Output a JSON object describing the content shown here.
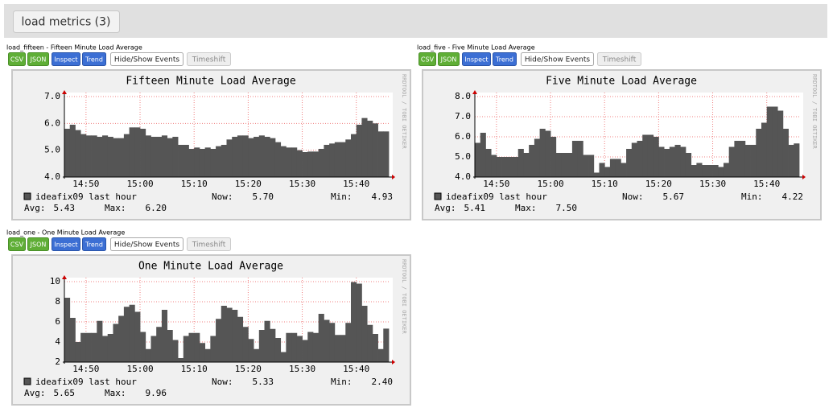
{
  "header": {
    "title": "load metrics (3)"
  },
  "buttons": [
    "CSV",
    "JSON",
    "Inspect",
    "Trend",
    "Hide/Show Events",
    "Timeshift"
  ],
  "chart_data": [
    {
      "type": "area",
      "caption": "load_fifteen - Fifteen Minute Load Average",
      "title": "Fifteen Minute Load Average",
      "watermark": "RRDTOOL / TOBI OETIKER",
      "x": [
        "14:46",
        "14:47",
        "14:48",
        "14:49",
        "14:50",
        "14:51",
        "14:52",
        "14:53",
        "14:54",
        "14:55",
        "14:56",
        "14:57",
        "14:58",
        "14:59",
        "15:00",
        "15:01",
        "15:02",
        "15:03",
        "15:04",
        "15:05",
        "15:06",
        "15:07",
        "15:08",
        "15:09",
        "15:10",
        "15:11",
        "15:12",
        "15:13",
        "15:14",
        "15:15",
        "15:16",
        "15:17",
        "15:18",
        "15:19",
        "15:20",
        "15:21",
        "15:22",
        "15:23",
        "15:24",
        "15:25",
        "15:26",
        "15:27",
        "15:28",
        "15:29",
        "15:30",
        "15:31",
        "15:32",
        "15:33",
        "15:34",
        "15:35",
        "15:36",
        "15:37",
        "15:38",
        "15:39",
        "15:40",
        "15:41",
        "15:42",
        "15:43",
        "15:44",
        "15:45"
      ],
      "xlim": [
        "14:46",
        "15:46"
      ],
      "xticks": [
        "14:50",
        "15:00",
        "15:10",
        "15:20",
        "15:30",
        "15:40"
      ],
      "ylim": [
        4,
        7
      ],
      "yticks": [
        {
          "value": 4,
          "label": "4.0"
        },
        {
          "value": 5,
          "label": "5.0"
        },
        {
          "value": 6,
          "label": "6.0"
        },
        {
          "value": 7,
          "label": "7.0"
        }
      ],
      "grid": true,
      "series": [
        {
          "name": "ideafix09 last hour",
          "color": "#555555",
          "values": [
            5.8,
            5.95,
            5.75,
            5.6,
            5.55,
            5.55,
            5.5,
            5.55,
            5.5,
            5.45,
            5.45,
            5.6,
            5.85,
            5.85,
            5.8,
            5.55,
            5.5,
            5.5,
            5.55,
            5.45,
            5.5,
            5.2,
            5.2,
            5.05,
            5.1,
            5.05,
            5.1,
            5.05,
            5.15,
            5.2,
            5.4,
            5.5,
            5.55,
            5.55,
            5.45,
            5.5,
            5.55,
            5.5,
            5.45,
            5.3,
            5.15,
            5.1,
            5.1,
            5.0,
            4.93,
            4.95,
            4.95,
            5.05,
            5.2,
            5.25,
            5.3,
            5.3,
            5.4,
            5.6,
            5.95,
            6.2,
            6.1,
            6.0,
            5.7,
            5.7
          ]
        }
      ],
      "stats": [
        {
          "label": "Now:",
          "value": "5.70"
        },
        {
          "label": "Min:",
          "value": "4.93"
        },
        {
          "label": "Avg:",
          "value": "5.43"
        },
        {
          "label": "Max:",
          "value": "6.20"
        }
      ]
    },
    {
      "type": "area",
      "caption": "load_five - Five Minute Load Average",
      "title": "Five Minute Load Average",
      "watermark": "RRDTOOL / TOBI OETIKER",
      "x": [
        "14:46",
        "14:47",
        "14:48",
        "14:49",
        "14:50",
        "14:51",
        "14:52",
        "14:53",
        "14:54",
        "14:55",
        "14:56",
        "14:57",
        "14:58",
        "14:59",
        "15:00",
        "15:01",
        "15:02",
        "15:03",
        "15:04",
        "15:05",
        "15:06",
        "15:07",
        "15:08",
        "15:09",
        "15:10",
        "15:11",
        "15:12",
        "15:13",
        "15:14",
        "15:15",
        "15:16",
        "15:17",
        "15:18",
        "15:19",
        "15:20",
        "15:21",
        "15:22",
        "15:23",
        "15:24",
        "15:25",
        "15:26",
        "15:27",
        "15:28",
        "15:29",
        "15:30",
        "15:31",
        "15:32",
        "15:33",
        "15:34",
        "15:35",
        "15:36",
        "15:37",
        "15:38",
        "15:39",
        "15:40",
        "15:41",
        "15:42",
        "15:43",
        "15:44",
        "15:45"
      ],
      "xlim": [
        "14:46",
        "15:46"
      ],
      "xticks": [
        "14:50",
        "15:00",
        "15:10",
        "15:20",
        "15:30",
        "15:40"
      ],
      "ylim": [
        4,
        8
      ],
      "yticks": [
        {
          "value": 4,
          "label": "4.0"
        },
        {
          "value": 5,
          "label": "5.0"
        },
        {
          "value": 6,
          "label": "6.0"
        },
        {
          "value": 7,
          "label": "7.0"
        },
        {
          "value": 8,
          "label": "8.0"
        }
      ],
      "grid": true,
      "series": [
        {
          "name": "ideafix09 last hour",
          "color": "#555555",
          "values": [
            5.7,
            6.2,
            5.4,
            5.1,
            5.0,
            5.0,
            5.0,
            5.0,
            5.4,
            5.2,
            5.6,
            5.9,
            6.4,
            6.3,
            6.0,
            5.2,
            5.2,
            5.2,
            5.8,
            5.8,
            5.1,
            5.1,
            4.22,
            4.7,
            4.5,
            4.9,
            4.9,
            4.7,
            5.4,
            5.7,
            5.8,
            6.1,
            6.1,
            6.0,
            5.5,
            5.4,
            5.5,
            5.6,
            5.5,
            5.2,
            4.6,
            4.7,
            4.6,
            4.6,
            4.6,
            4.5,
            4.7,
            5.5,
            5.8,
            5.8,
            5.6,
            5.6,
            6.4,
            6.7,
            7.5,
            7.5,
            7.3,
            6.4,
            5.6,
            5.67
          ]
        }
      ],
      "stats": [
        {
          "label": "Now:",
          "value": "5.67"
        },
        {
          "label": "Min:",
          "value": "4.22"
        },
        {
          "label": "Avg:",
          "value": "5.41"
        },
        {
          "label": "Max:",
          "value": "7.50"
        }
      ]
    },
    {
      "type": "area",
      "caption": "load_one - One Minute Load Average",
      "title": "One Minute Load Average",
      "watermark": "RRDTOOL / TOBI OETIKER",
      "x": [
        "14:46",
        "14:47",
        "14:48",
        "14:49",
        "14:50",
        "14:51",
        "14:52",
        "14:53",
        "14:54",
        "14:55",
        "14:56",
        "14:57",
        "14:58",
        "14:59",
        "15:00",
        "15:01",
        "15:02",
        "15:03",
        "15:04",
        "15:05",
        "15:06",
        "15:07",
        "15:08",
        "15:09",
        "15:10",
        "15:11",
        "15:12",
        "15:13",
        "15:14",
        "15:15",
        "15:16",
        "15:17",
        "15:18",
        "15:19",
        "15:20",
        "15:21",
        "15:22",
        "15:23",
        "15:24",
        "15:25",
        "15:26",
        "15:27",
        "15:28",
        "15:29",
        "15:30",
        "15:31",
        "15:32",
        "15:33",
        "15:34",
        "15:35",
        "15:36",
        "15:37",
        "15:38",
        "15:39",
        "15:40",
        "15:41",
        "15:42",
        "15:43",
        "15:44",
        "15:45"
      ],
      "xlim": [
        "14:46",
        "15:46"
      ],
      "xticks": [
        "14:50",
        "15:00",
        "15:10",
        "15:20",
        "15:30",
        "15:40"
      ],
      "ylim": [
        2,
        10
      ],
      "yticks": [
        2,
        4,
        6,
        8,
        10
      ],
      "grid": true,
      "series": [
        {
          "name": "ideafix09 last hour",
          "color": "#555555",
          "values": [
            8.4,
            6.4,
            4.0,
            4.9,
            4.9,
            4.9,
            6.1,
            4.6,
            4.8,
            5.8,
            6.6,
            7.5,
            7.7,
            7.0,
            5.0,
            3.3,
            4.6,
            5.5,
            7.2,
            5.2,
            4.2,
            2.4,
            4.6,
            4.9,
            4.9,
            3.9,
            3.3,
            4.6,
            6.3,
            7.6,
            7.4,
            7.2,
            6.5,
            5.5,
            4.3,
            3.3,
            5.2,
            6.1,
            5.3,
            4.4,
            3.0,
            4.9,
            4.9,
            4.6,
            4.2,
            5.0,
            4.9,
            6.8,
            6.2,
            5.9,
            4.7,
            4.7,
            5.9,
            9.96,
            9.8,
            7.6,
            5.7,
            4.8,
            3.3,
            5.33
          ]
        }
      ],
      "stats": [
        {
          "label": "Now:",
          "value": "5.33"
        },
        {
          "label": "Min:",
          "value": "2.40"
        },
        {
          "label": "Avg:",
          "value": "5.65"
        },
        {
          "label": "Max:",
          "value": "9.96"
        }
      ]
    }
  ]
}
